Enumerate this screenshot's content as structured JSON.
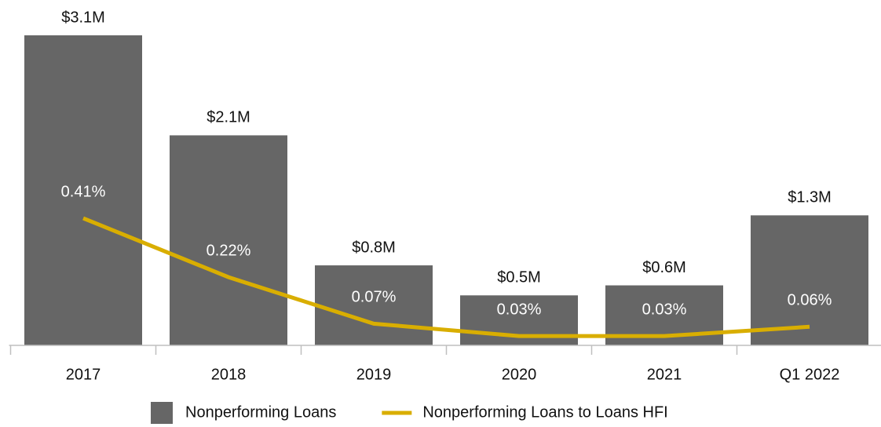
{
  "chart_data": {
    "type": "bar",
    "categories": [
      "2017",
      "2018",
      "2019",
      "2020",
      "2021",
      "Q1 2022"
    ],
    "series": [
      {
        "name": "Nonperforming Loans",
        "color": "#666666",
        "type": "bar",
        "values": [
          3.1,
          2.1,
          0.8,
          0.5,
          0.6,
          1.3
        ],
        "value_labels": [
          "$3.1M",
          "$2.1M",
          "$0.8M",
          "$0.5M",
          "$0.6M",
          "$1.3M"
        ]
      },
      {
        "name": "Nonperforming Loans to Loans HFI",
        "color": "#d9ae00",
        "type": "line",
        "axis": "y2",
        "values": [
          0.41,
          0.22,
          0.07,
          0.03,
          0.03,
          0.06
        ],
        "value_labels": [
          "0.41%",
          "0.22%",
          "0.07%",
          "0.03%",
          "0.03%",
          "0.06%"
        ]
      }
    ],
    "ylim": [
      0,
      3.1
    ],
    "y2lim": [
      0,
      1
    ],
    "legend": "bottom"
  }
}
